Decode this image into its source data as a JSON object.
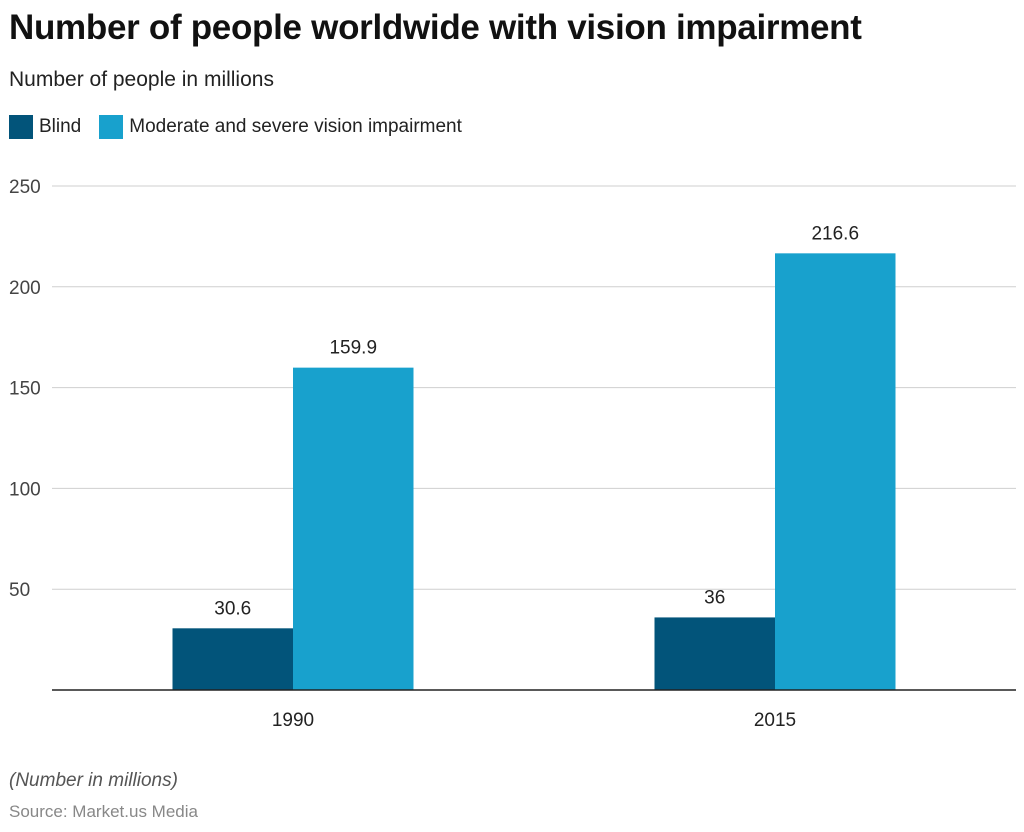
{
  "chart_data": {
    "type": "bar",
    "title": "Number of people worldwide with vision impairment",
    "subtitle": "Number of people in millions",
    "categories": [
      "1990",
      "2015"
    ],
    "series": [
      {
        "name": "Blind",
        "values": [
          30.6,
          36
        ],
        "labels": [
          "30.6",
          "36"
        ],
        "color": "#02547a"
      },
      {
        "name": "Moderate and severe vision impairment",
        "values": [
          159.9,
          216.6
        ],
        "labels": [
          "159.9",
          "216.6"
        ],
        "color": "#18a1cd"
      }
    ],
    "ylim": [
      0,
      250
    ],
    "yticks": [
      50,
      100,
      150,
      200,
      250
    ],
    "grid": true,
    "legend_position": "top-left",
    "xlabel": "",
    "ylabel": ""
  },
  "footer": {
    "note": "(Number in millions)",
    "source": "Source: Market.us Media"
  }
}
